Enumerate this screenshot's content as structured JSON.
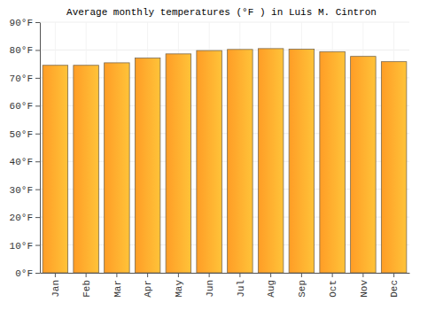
{
  "chart_data": {
    "type": "bar",
    "title": "Average monthly temperatures (°F ) in Luis M. Cintron",
    "categories": [
      "Jan",
      "Feb",
      "Mar",
      "Apr",
      "May",
      "Jun",
      "Jul",
      "Aug",
      "Sep",
      "Oct",
      "Nov",
      "Dec"
    ],
    "values": [
      74.5,
      74.5,
      75.4,
      77.1,
      78.6,
      79.8,
      80.2,
      80.5,
      80.3,
      79.4,
      77.7,
      75.8
    ],
    "color": "#ffb02e",
    "ylim": [
      0,
      90
    ],
    "yticks": [
      {
        "value": 0,
        "label": "0°F"
      },
      {
        "value": 10,
        "label": "10°F"
      },
      {
        "value": 20,
        "label": "20°F"
      },
      {
        "value": 30,
        "label": "30°F"
      },
      {
        "value": 40,
        "label": "40°F"
      },
      {
        "value": 50,
        "label": "50°F"
      },
      {
        "value": 60,
        "label": "60°F"
      },
      {
        "value": 70,
        "label": "70°F"
      },
      {
        "value": 80,
        "label": "80°F"
      },
      {
        "value": 90,
        "label": "90°F"
      }
    ],
    "grid": true
  }
}
